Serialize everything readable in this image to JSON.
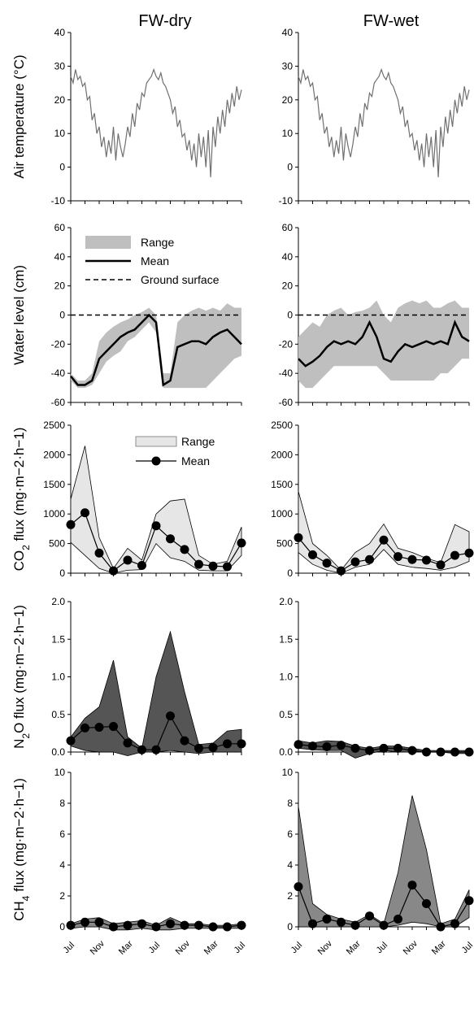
{
  "figure": {
    "columns": [
      "FW-dry",
      "FW-wet"
    ],
    "month_labels": [
      "Jul",
      "Nov",
      "Mar",
      "Jul",
      "Nov",
      "Mar",
      "Jul"
    ]
  },
  "chart_data": [
    {
      "id": "air-temp-dry",
      "type": "line",
      "column": "FW-dry",
      "ylabel": "Air temperature (°C)",
      "ylim": [
        -10,
        40
      ],
      "yticks": [
        -10,
        0,
        10,
        20,
        30,
        40
      ],
      "colors": {
        "line": "#707070"
      },
      "series": [
        {
          "x": [
            0,
            10,
            20,
            30,
            40,
            50,
            60,
            70,
            80,
            90,
            100,
            110,
            120,
            130,
            140,
            150,
            160,
            170,
            180,
            190,
            200,
            210,
            220,
            230,
            240,
            250,
            260,
            270,
            280,
            290,
            300,
            310,
            320,
            330,
            340,
            350,
            360,
            370,
            380,
            390,
            400,
            410,
            420,
            430,
            440,
            450,
            460,
            470,
            480,
            490,
            500,
            510,
            520,
            530,
            540,
            550,
            560,
            570,
            580,
            590,
            600,
            610,
            620,
            630,
            640,
            650,
            660,
            670,
            680,
            690,
            700,
            710,
            720
          ],
          "y": [
            27,
            25,
            29,
            26,
            27,
            24,
            25,
            20,
            21,
            14,
            16,
            10,
            12,
            6,
            9,
            3,
            8,
            4,
            12,
            2,
            10,
            6,
            3,
            7,
            12,
            9,
            16,
            12,
            19,
            17,
            22,
            21,
            25,
            26,
            27,
            29,
            27,
            26,
            28,
            25,
            24,
            22,
            20,
            16,
            18,
            12,
            14,
            9,
            10,
            5,
            8,
            2,
            7,
            0,
            10,
            3,
            9,
            0,
            11,
            -3,
            12,
            6,
            15,
            10,
            17,
            12,
            20,
            16,
            22,
            18,
            24,
            20,
            23
          ]
        }
      ]
    },
    {
      "id": "air-temp-wet",
      "type": "line",
      "column": "FW-wet",
      "ylim": [
        -10,
        40
      ],
      "yticks": [
        -10,
        0,
        10,
        20,
        30,
        40
      ],
      "colors": {
        "line": "#707070"
      },
      "series": [
        {
          "x": [
            0,
            10,
            20,
            30,
            40,
            50,
            60,
            70,
            80,
            90,
            100,
            110,
            120,
            130,
            140,
            150,
            160,
            170,
            180,
            190,
            200,
            210,
            220,
            230,
            240,
            250,
            260,
            270,
            280,
            290,
            300,
            310,
            320,
            330,
            340,
            350,
            360,
            370,
            380,
            390,
            400,
            410,
            420,
            430,
            440,
            450,
            460,
            470,
            480,
            490,
            500,
            510,
            520,
            530,
            540,
            550,
            560,
            570,
            580,
            590,
            600,
            610,
            620,
            630,
            640,
            650,
            660,
            670,
            680,
            690,
            700,
            710,
            720
          ],
          "y": [
            27,
            25,
            29,
            26,
            27,
            24,
            25,
            20,
            21,
            14,
            16,
            10,
            12,
            6,
            9,
            3,
            8,
            4,
            12,
            2,
            10,
            6,
            3,
            7,
            12,
            9,
            16,
            12,
            19,
            17,
            22,
            21,
            25,
            26,
            27,
            29,
            27,
            26,
            28,
            25,
            24,
            22,
            20,
            16,
            18,
            12,
            14,
            9,
            10,
            5,
            8,
            2,
            7,
            0,
            10,
            3,
            9,
            0,
            11,
            -3,
            12,
            6,
            15,
            10,
            17,
            12,
            20,
            16,
            22,
            18,
            24,
            20,
            23
          ]
        }
      ]
    },
    {
      "id": "water-level-dry",
      "type": "area",
      "column": "FW-dry",
      "ylabel": "Water level (cm)",
      "ylim": [
        -60,
        60
      ],
      "yticks": [
        -60,
        -40,
        -20,
        0,
        20,
        40,
        60
      ],
      "colors": {
        "range": "#bfbfbf",
        "mean": "#000000"
      },
      "legend": [
        "Range",
        "Mean",
        "Ground surface"
      ],
      "range": {
        "x": [
          0,
          30,
          60,
          90,
          120,
          150,
          180,
          210,
          240,
          270,
          300,
          330,
          360,
          390,
          420,
          450,
          480,
          510,
          540,
          570,
          600,
          630,
          660,
          690,
          720
        ],
        "lower": [
          -45,
          -50,
          -50,
          -48,
          -40,
          -32,
          -28,
          -25,
          -18,
          -15,
          -10,
          -5,
          -12,
          -50,
          -50,
          -50,
          -50,
          -50,
          -50,
          -50,
          -45,
          -40,
          -35,
          -30,
          -28
        ],
        "upper": [
          -40,
          -45,
          -45,
          -40,
          -18,
          -12,
          -8,
          -5,
          -3,
          0,
          2,
          5,
          0,
          -40,
          -40,
          -5,
          0,
          3,
          5,
          3,
          5,
          3,
          8,
          5,
          5
        ]
      },
      "mean": {
        "x": [
          0,
          30,
          60,
          90,
          120,
          150,
          180,
          210,
          240,
          270,
          300,
          330,
          360,
          390,
          420,
          450,
          480,
          510,
          540,
          570,
          600,
          630,
          660,
          690,
          720
        ],
        "y": [
          -42,
          -48,
          -48,
          -45,
          -30,
          -25,
          -20,
          -15,
          -12,
          -10,
          -5,
          0,
          -5,
          -48,
          -45,
          -22,
          -20,
          -18,
          -18,
          -20,
          -15,
          -12,
          -10,
          -15,
          -20
        ]
      },
      "ground_surface": 0
    },
    {
      "id": "water-level-wet",
      "type": "area",
      "column": "FW-wet",
      "ylim": [
        -60,
        60
      ],
      "yticks": [
        -60,
        -40,
        -20,
        0,
        20,
        40,
        60
      ],
      "colors": {
        "range": "#bfbfbf",
        "mean": "#000000"
      },
      "range": {
        "x": [
          0,
          30,
          60,
          90,
          120,
          150,
          180,
          210,
          240,
          270,
          300,
          330,
          360,
          390,
          420,
          450,
          480,
          510,
          540,
          570,
          600,
          630,
          660,
          690,
          720
        ],
        "lower": [
          -45,
          -50,
          -50,
          -45,
          -40,
          -35,
          -35,
          -35,
          -35,
          -35,
          -35,
          -35,
          -40,
          -45,
          -45,
          -45,
          -45,
          -45,
          -45,
          -45,
          -40,
          -40,
          -35,
          -30,
          -30
        ],
        "upper": [
          -15,
          -10,
          -5,
          -8,
          0,
          3,
          5,
          0,
          2,
          3,
          5,
          10,
          0,
          -5,
          5,
          8,
          10,
          8,
          10,
          5,
          5,
          8,
          10,
          5,
          5
        ]
      },
      "mean": {
        "x": [
          0,
          30,
          60,
          90,
          120,
          150,
          180,
          210,
          240,
          270,
          300,
          330,
          360,
          390,
          420,
          450,
          480,
          510,
          540,
          570,
          600,
          630,
          660,
          690,
          720
        ],
        "y": [
          -30,
          -35,
          -32,
          -28,
          -22,
          -18,
          -20,
          -18,
          -20,
          -15,
          -5,
          -15,
          -30,
          -32,
          -25,
          -20,
          -22,
          -20,
          -18,
          -20,
          -18,
          -20,
          -5,
          -15,
          -18
        ]
      },
      "ground_surface": 0
    },
    {
      "id": "co2-dry",
      "type": "line",
      "column": "FW-dry",
      "ylabel": "CO2 flux (mg·m−2·h−1)",
      "ylim": [
        0,
        2500
      ],
      "yticks": [
        0,
        500,
        1000,
        1500,
        2000,
        2500
      ],
      "colors": {
        "range": "#e6e6e6",
        "mean": "#000000"
      },
      "legend": [
        "Range",
        "Mean"
      ],
      "x": [
        0,
        60,
        120,
        180,
        240,
        300,
        360,
        420,
        480,
        540,
        600,
        660,
        720
      ],
      "mean": [
        820,
        1020,
        340,
        40,
        220,
        130,
        800,
        580,
        400,
        150,
        120,
        110,
        510
      ],
      "upper": [
        1250,
        2150,
        600,
        80,
        420,
        220,
        1000,
        1220,
        1250,
        300,
        150,
        200,
        780
      ],
      "lower": [
        520,
        300,
        80,
        0,
        50,
        60,
        500,
        260,
        200,
        50,
        40,
        40,
        300
      ]
    },
    {
      "id": "co2-wet",
      "type": "line",
      "column": "FW-wet",
      "ylim": [
        0,
        2500
      ],
      "yticks": [
        0,
        500,
        1000,
        1500,
        2000,
        2500
      ],
      "colors": {
        "range": "#e6e6e6",
        "mean": "#000000"
      },
      "x": [
        0,
        60,
        120,
        180,
        240,
        300,
        360,
        420,
        480,
        540,
        600,
        660,
        720
      ],
      "mean": [
        600,
        310,
        170,
        40,
        190,
        230,
        560,
        280,
        230,
        220,
        140,
        300,
        340
      ],
      "upper": [
        1380,
        500,
        300,
        50,
        350,
        500,
        830,
        420,
        350,
        250,
        180,
        820,
        700
      ],
      "lower": [
        350,
        150,
        50,
        0,
        100,
        150,
        400,
        150,
        100,
        80,
        50,
        100,
        200
      ]
    },
    {
      "id": "n2o-dry",
      "type": "line",
      "column": "FW-dry",
      "ylabel": "N2O flux (mg·m−2·h−1)",
      "ylim": [
        0,
        2.0
      ],
      "yticks": [
        0.0,
        0.5,
        1.0,
        1.5,
        2.0
      ],
      "colors": {
        "range": "#555555",
        "mean": "#000000"
      },
      "x": [
        0,
        60,
        120,
        180,
        240,
        300,
        360,
        420,
        480,
        540,
        600,
        660,
        720
      ],
      "mean": [
        0.15,
        0.32,
        0.33,
        0.34,
        0.12,
        0.03,
        0.03,
        0.48,
        0.15,
        0.05,
        0.06,
        0.11,
        0.11
      ],
      "upper": [
        0.2,
        0.45,
        0.6,
        1.22,
        0.2,
        0.05,
        1.0,
        1.6,
        0.8,
        0.1,
        0.12,
        0.28,
        0.3
      ],
      "lower": [
        0.08,
        0.02,
        0.0,
        0.0,
        -0.05,
        0.0,
        0.0,
        0.02,
        0.0,
        -0.02,
        0.0,
        0.0,
        0.0
      ]
    },
    {
      "id": "n2o-wet",
      "type": "line",
      "column": "FW-wet",
      "ylim": [
        0,
        2.0
      ],
      "yticks": [
        0.0,
        0.5,
        1.0,
        1.5,
        2.0
      ],
      "colors": {
        "range": "#555555",
        "mean": "#000000"
      },
      "x": [
        0,
        60,
        120,
        180,
        240,
        300,
        360,
        420,
        480,
        540,
        600,
        660,
        720
      ],
      "mean": [
        0.1,
        0.08,
        0.07,
        0.09,
        0.05,
        0.02,
        0.05,
        0.05,
        0.02,
        0.0,
        0.0,
        0.0,
        0.0
      ],
      "upper": [
        0.15,
        0.12,
        0.15,
        0.14,
        0.08,
        0.05,
        0.08,
        0.08,
        0.05,
        0.02,
        0.02,
        0.02,
        0.02
      ],
      "lower": [
        0.05,
        0.03,
        0.02,
        0.02,
        -0.08,
        -0.02,
        0.02,
        0.0,
        0.0,
        0.0,
        0.0,
        -0.02,
        -0.02
      ]
    },
    {
      "id": "ch4-dry",
      "type": "line",
      "column": "FW-dry",
      "ylabel": "CH4 flux (mg·m−2·h−1)",
      "ylim": [
        0,
        10
      ],
      "yticks": [
        0,
        2,
        4,
        6,
        8,
        10
      ],
      "colors": {
        "range": "#888888",
        "mean": "#000000"
      },
      "x": [
        0,
        60,
        120,
        180,
        240,
        300,
        360,
        420,
        480,
        540,
        600,
        660,
        720
      ],
      "mean": [
        0.1,
        0.3,
        0.3,
        0.0,
        0.1,
        0.2,
        0.0,
        0.2,
        0.1,
        0.1,
        0.0,
        0.0,
        0.1
      ],
      "upper": [
        0.2,
        0.5,
        0.6,
        0.2,
        0.3,
        0.4,
        0.1,
        0.6,
        0.2,
        0.2,
        0.1,
        0.1,
        0.2
      ],
      "lower": [
        -0.1,
        0.0,
        0.0,
        -0.2,
        -0.2,
        -0.1,
        -0.2,
        -0.2,
        -0.1,
        -0.1,
        -0.1,
        -0.1,
        -0.1
      ]
    },
    {
      "id": "ch4-wet",
      "type": "line",
      "column": "FW-wet",
      "ylim": [
        0,
        10
      ],
      "yticks": [
        0,
        2,
        4,
        6,
        8,
        10
      ],
      "colors": {
        "range": "#888888",
        "mean": "#000000"
      },
      "x": [
        0,
        60,
        120,
        180,
        240,
        300,
        360,
        420,
        480,
        540,
        600,
        660,
        720
      ],
      "mean": [
        2.6,
        0.2,
        0.5,
        0.3,
        0.1,
        0.7,
        0.1,
        0.5,
        2.7,
        1.5,
        0.0,
        0.2,
        1.7
      ],
      "upper": [
        7.8,
        1.5,
        0.8,
        0.5,
        0.3,
        0.8,
        0.2,
        3.5,
        8.5,
        5.0,
        0.2,
        0.5,
        2.4
      ],
      "lower": [
        0.0,
        0.0,
        0.0,
        0.0,
        0.0,
        0.0,
        0.0,
        0.1,
        0.3,
        0.2,
        0.0,
        0.0,
        0.6
      ]
    }
  ]
}
